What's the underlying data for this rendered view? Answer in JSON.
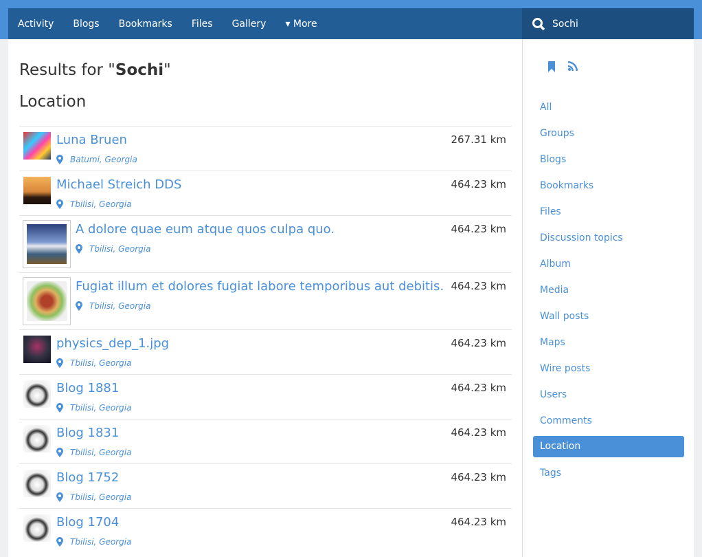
{
  "nav": {
    "items": [
      "Activity",
      "Blogs",
      "Bookmarks",
      "Files",
      "Gallery",
      "▾ More"
    ],
    "search_value": "Sochi"
  },
  "main": {
    "results_prefix": "Results for \"",
    "query": "Sochi",
    "results_suffix": "\"",
    "section": "Location",
    "results": [
      {
        "title": "Luna Bruen",
        "location": "Batumi, Georgia",
        "distance": "267.31 km",
        "thumb": "abstract",
        "framed": false
      },
      {
        "title": "Michael Streich DDS",
        "location": "Tbilisi, Georgia",
        "distance": "464.23 km",
        "thumb": "sunset",
        "framed": false
      },
      {
        "title": "A dolore quae eum atque quos culpa quo.",
        "location": "Tbilisi, Georgia",
        "distance": "464.23 km",
        "thumb": "beach",
        "framed": true
      },
      {
        "title": "Fugiat illum et dolores fugiat labore temporibus aut debitis.",
        "location": "Tbilisi, Georgia",
        "distance": "464.23 km",
        "thumb": "burger",
        "framed": true
      },
      {
        "title": "physics_dep_1.jpg",
        "location": "Tbilisi, Georgia",
        "distance": "464.23 km",
        "thumb": "space",
        "framed": false
      },
      {
        "title": "Blog 1881",
        "location": "Tbilisi, Georgia",
        "distance": "464.23 km",
        "thumb": "dog",
        "framed": false
      },
      {
        "title": "Blog 1831",
        "location": "Tbilisi, Georgia",
        "distance": "464.23 km",
        "thumb": "dog",
        "framed": false
      },
      {
        "title": "Blog 1752",
        "location": "Tbilisi, Georgia",
        "distance": "464.23 km",
        "thumb": "dog",
        "framed": false
      },
      {
        "title": "Blog 1704",
        "location": "Tbilisi, Georgia",
        "distance": "464.23 km",
        "thumb": "dog",
        "framed": false
      }
    ]
  },
  "sidebar": {
    "items": [
      "All",
      "Groups",
      "Blogs",
      "Bookmarks",
      "Files",
      "Discussion topics",
      "Album",
      "Media",
      "Wall posts",
      "Maps",
      "Wire posts",
      "Users",
      "Comments",
      "Location",
      "Tags"
    ],
    "active": "Location"
  },
  "colors": {
    "accent": "#4a90d9",
    "nav": "#225d96"
  }
}
